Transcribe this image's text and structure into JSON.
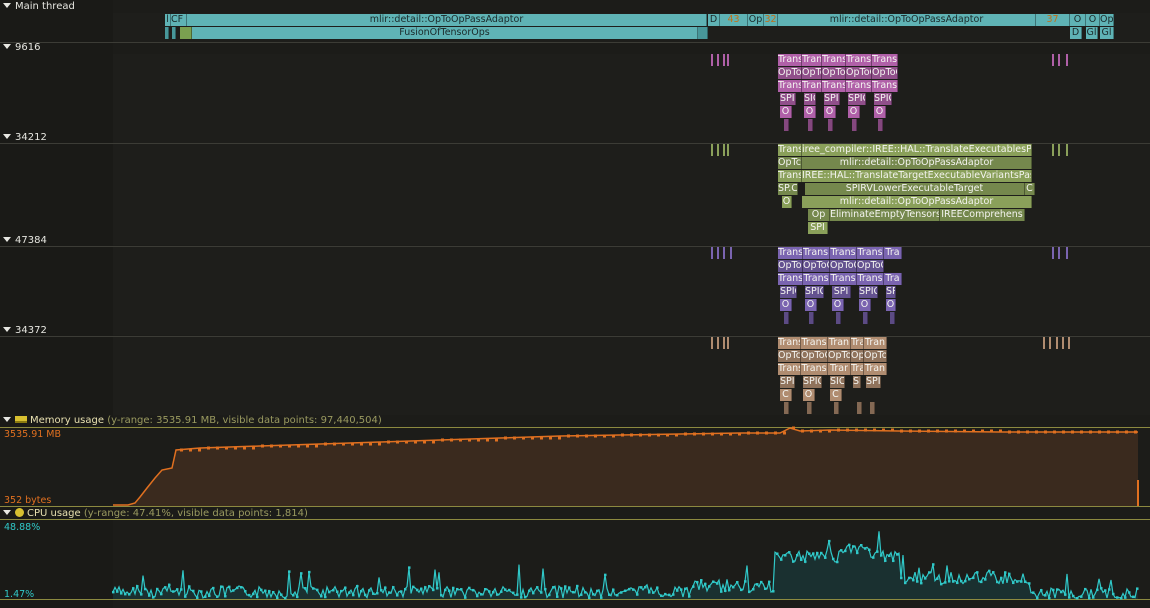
{
  "main_thread": {
    "label": "Main thread",
    "zones_row1": [
      {
        "text": "l"
      },
      {
        "text": "CF"
      },
      {
        "text": "mlir::detail::OpToOpPassAdaptor"
      },
      {
        "text": "D"
      },
      {
        "text": "43"
      },
      {
        "text": "Op"
      },
      {
        "text": "32"
      },
      {
        "text": "mlir::detail::OpToOpPassAdaptor"
      },
      {
        "text": "37"
      },
      {
        "text": "O"
      },
      {
        "text": "O"
      },
      {
        "text": "Op"
      }
    ],
    "zones_row2": [
      {
        "text": "FusionOfTensorOps"
      },
      {
        "text": "D"
      },
      {
        "text": "Gl"
      },
      {
        "text": "Gl"
      }
    ]
  },
  "threads": [
    {
      "id": "9616",
      "color": "#b060a8",
      "rows": [
        [
          "Trans",
          "Trans",
          "Trans",
          "Trans",
          "Trans"
        ],
        [
          "OpToOp",
          "OpToO",
          "OpToOp",
          "OpToO",
          "OpToOp"
        ],
        [
          "Trans",
          "Trans",
          "Trans",
          "Trans",
          "Trans"
        ],
        [
          "SPIC",
          "SIC",
          "SPIC",
          "SPIC",
          "SPIC"
        ],
        [
          "O",
          "O",
          "O",
          "O",
          "O"
        ]
      ]
    },
    {
      "id": "34212",
      "color": "#8aa05a",
      "rows": [
        [
          "Trans",
          "iree_compiler::IREE::HAL::TranslateExecutablesPass"
        ],
        [
          "OpTc",
          "mlir::detail::OpToOpPassAdaptor"
        ],
        [
          "Trans",
          "IREE::HAL::TranslateTargetExecutableVariantsPass"
        ],
        [
          "SP.C",
          "SPIRVLowerExecutableTarget",
          "C"
        ],
        [
          "O",
          "mlir::detail::OpToOpPassAdaptor"
        ],
        [
          "Op",
          "EliminateEmptyTensors",
          "IREEComprehens"
        ],
        [
          "SPI"
        ]
      ]
    },
    {
      "id": "47384",
      "color": "#7a64b0",
      "rows": [
        [
          "Trans",
          "Transl",
          "Trans",
          "Trans",
          "Tra"
        ],
        [
          "OpToOp",
          "OpToO",
          "OpToO",
          "OpToOp"
        ],
        [
          "Trans",
          "Trans",
          "Trans",
          "Trans",
          "Tra"
        ],
        [
          "SPIC",
          "SPIC",
          "SPI",
          "SPIC",
          "SPIC"
        ],
        [
          "O",
          "O",
          "O",
          "O",
          "O"
        ]
      ]
    },
    {
      "id": "34372",
      "color": "#b08c70",
      "rows": [
        [
          "Trans",
          "Trans",
          "Tran",
          "Tran",
          "Tran"
        ],
        [
          "OpTc",
          "OpToOp",
          "OpTo",
          "OpTo",
          "OpTo"
        ],
        [
          "Trans",
          "Trans",
          "Trar",
          "Trar",
          "Tran"
        ],
        [
          "SPIC",
          "SPIC",
          "SIC",
          "SIC",
          "SPIC"
        ],
        [
          "C",
          "O",
          "C"
        ]
      ]
    }
  ],
  "memory_plot": {
    "title": "Memory usage",
    "meta": "(y-range: 3535.91 MB, visible data points: 97,440,504)",
    "max_label": "3535.91 MB",
    "min_label": "352 bytes",
    "line_color": "#e07020",
    "fill_color": "#3a2a1e"
  },
  "cpu_plot": {
    "title": "CPU usage",
    "meta": "(y-range: 47.41%, visible data points: 1,814)",
    "max_label": "48.88%",
    "min_label": "1.47%",
    "line_color": "#30c8c8",
    "fill_color": "#1a3030"
  }
}
